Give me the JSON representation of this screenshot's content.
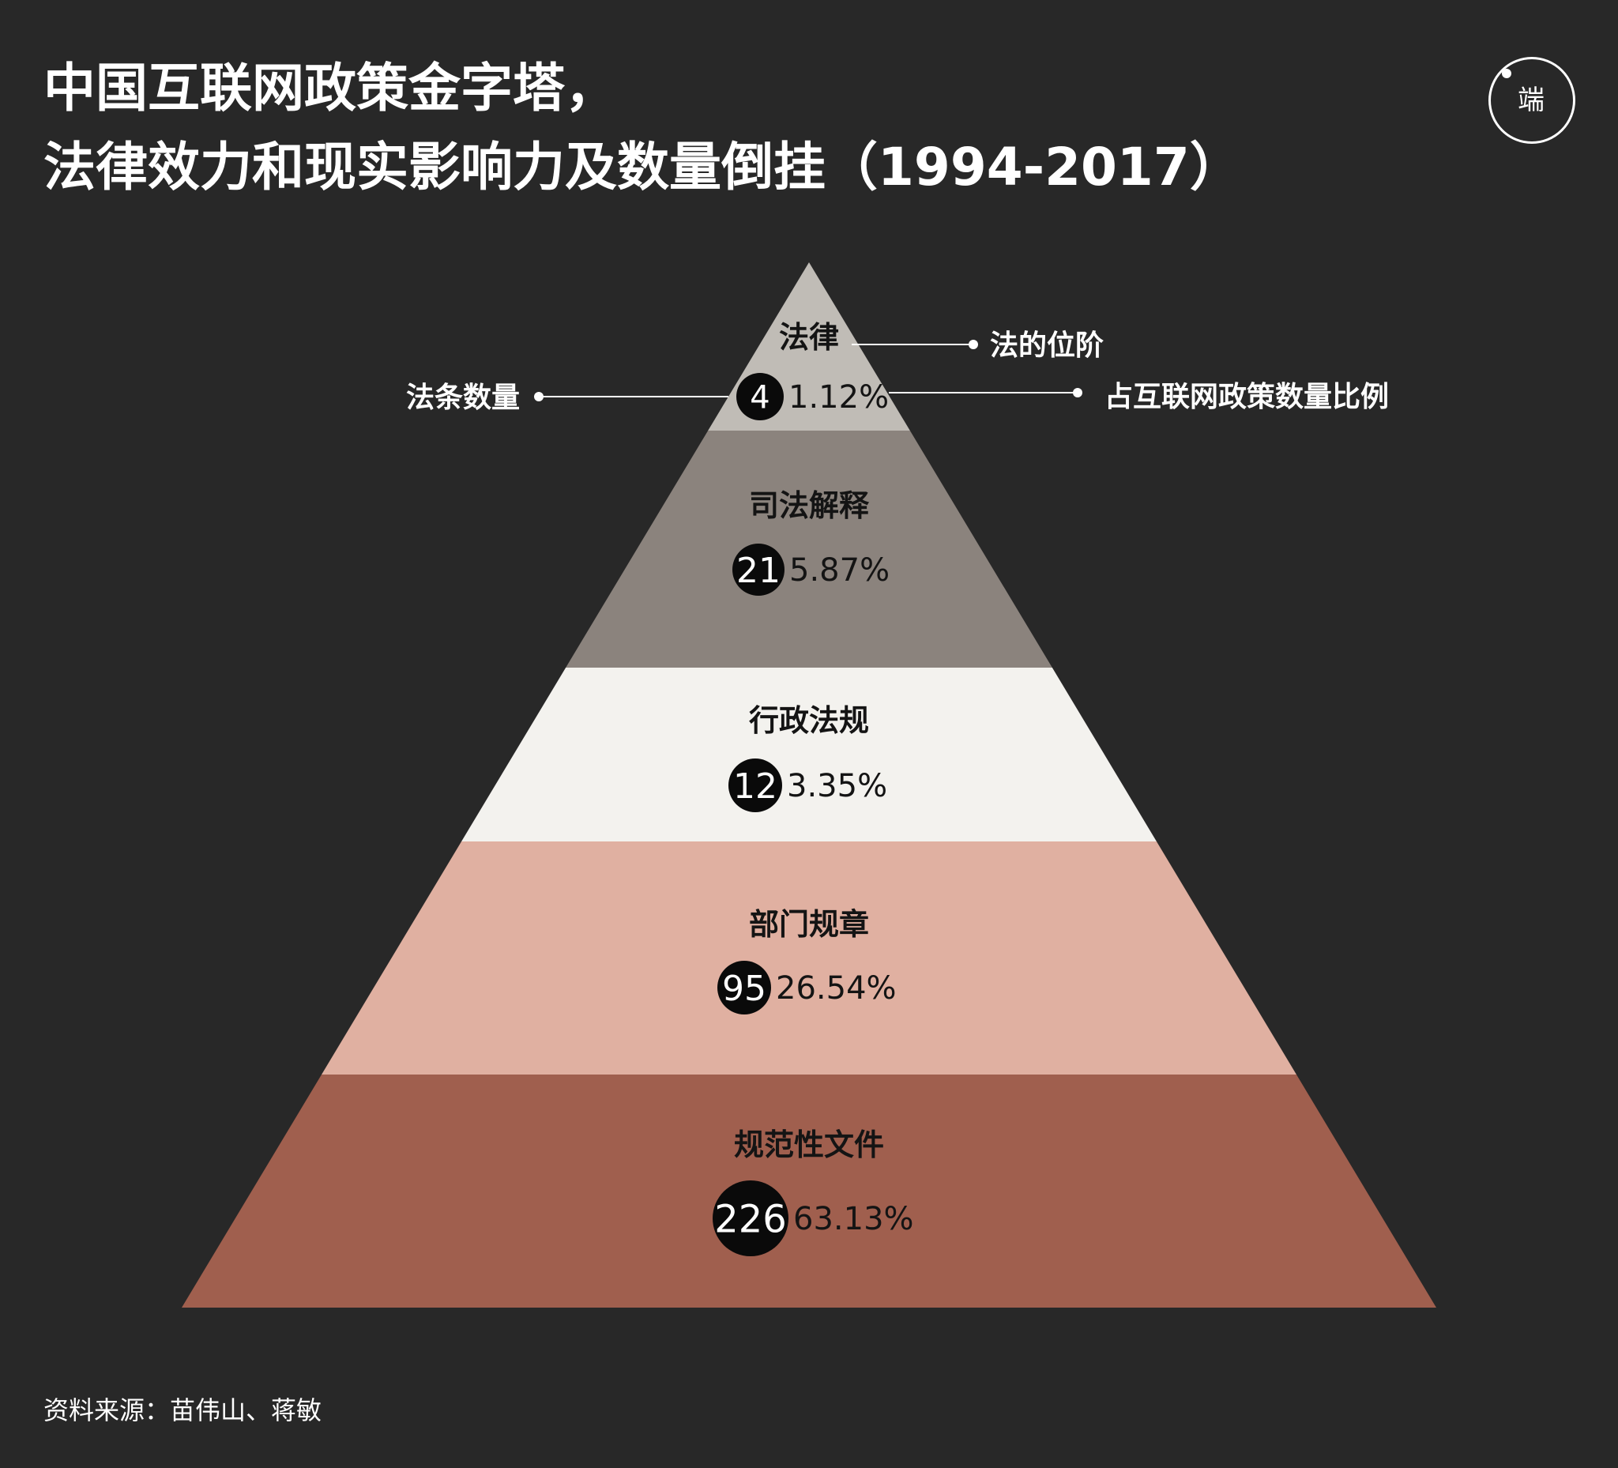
{
  "title": {
    "line1": "中国互联网政策金字塔，",
    "line2": "法律效力和现实影响力及数量倒挂（1994-2017）"
  },
  "logo": {
    "text": "端"
  },
  "legend": {
    "rank": "法的位阶",
    "count": "法条数量",
    "ratio": "占互联网政策数量比例"
  },
  "colors": {
    "background": "#282828",
    "tier_1": "#c0bcb6",
    "tier_2": "#8b837d",
    "tier_3": "#f3f2ee",
    "tier_4": "#e0b0a1",
    "tier_5": "#a05f4e",
    "badge": "#0a0a0a"
  },
  "chart_data": {
    "type": "pyramid",
    "tiers": [
      {
        "name": "法律",
        "count": "4",
        "percent": "1.12%"
      },
      {
        "name": "司法解释",
        "count": "21",
        "percent": "5.87%"
      },
      {
        "name": "行政法规",
        "count": "12",
        "percent": "3.35%"
      },
      {
        "name": "部门规章",
        "count": "95",
        "percent": "26.54%"
      },
      {
        "name": "规范性文件",
        "count": "226",
        "percent": "63.13%"
      }
    ]
  },
  "source": "资料来源：苗伟山、蒋敏"
}
